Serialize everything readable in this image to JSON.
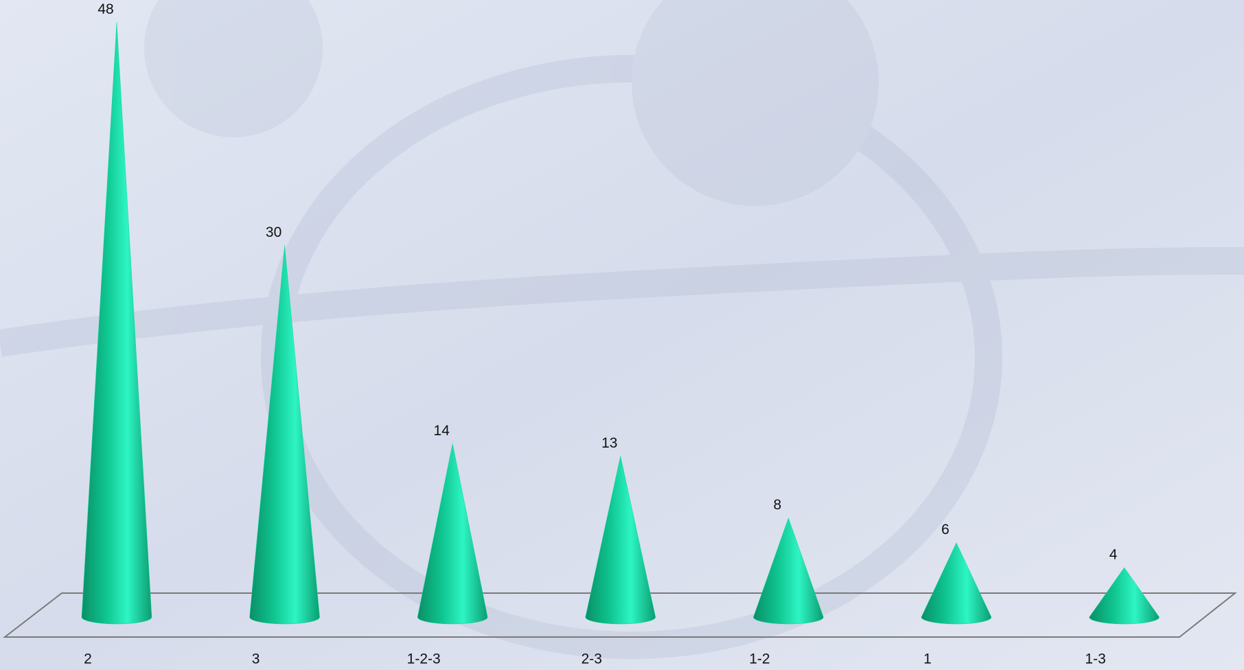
{
  "chart_data": {
    "type": "cone",
    "categories": [
      "2",
      "3",
      "1-2-3",
      "2-3",
      "1-2",
      "1",
      "1-3"
    ],
    "values": [
      48,
      30,
      14,
      13,
      8,
      6,
      4
    ],
    "color": "#12d69f"
  }
}
